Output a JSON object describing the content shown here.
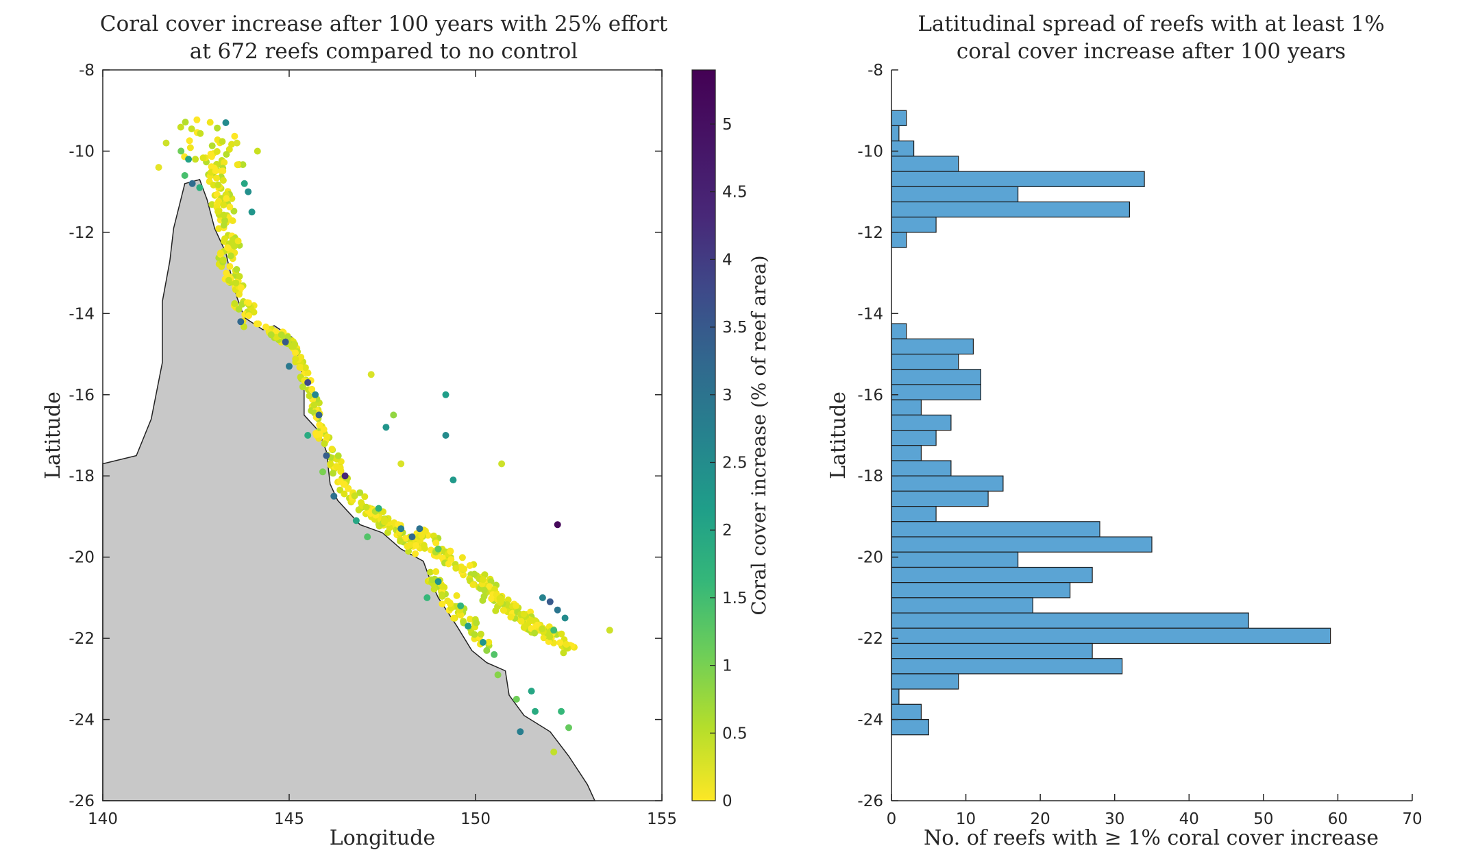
{
  "chart_data": [
    {
      "type": "scatter",
      "title_lines": [
        "Coral cover increase after 100 years with 25% effort",
        "at 672 reefs compared to no control"
      ],
      "xlabel": "Longitude",
      "ylabel": "Latitude",
      "xlim": [
        140,
        155
      ],
      "ylim": [
        -26,
        -8
      ],
      "xticks": [
        "140",
        "145",
        "150",
        "155"
      ],
      "yticks": [
        "-8",
        "-10",
        "-12",
        "-14",
        "-16",
        "-18",
        "-20",
        "-22",
        "-24",
        "-26"
      ],
      "land_color": "#c8c8c8",
      "coastline": [
        [
          140,
          -17.7
        ],
        [
          140.9,
          -17.5
        ],
        [
          141.3,
          -16.6
        ],
        [
          141.6,
          -15.2
        ],
        [
          141.6,
          -13.7
        ],
        [
          141.8,
          -12.7
        ],
        [
          141.9,
          -11.9
        ],
        [
          142.2,
          -10.8
        ],
        [
          142.6,
          -10.7
        ],
        [
          142.8,
          -11.2
        ],
        [
          143.0,
          -11.9
        ],
        [
          143.3,
          -12.5
        ],
        [
          143.4,
          -12.9
        ],
        [
          143.6,
          -13.6
        ],
        [
          143.8,
          -14.1
        ],
        [
          144.3,
          -14.4
        ],
        [
          144.6,
          -14.3
        ],
        [
          145.1,
          -14.6
        ],
        [
          145.3,
          -15.2
        ],
        [
          145.4,
          -15.9
        ],
        [
          145.4,
          -16.5
        ],
        [
          145.8,
          -16.9
        ],
        [
          146.0,
          -17.4
        ],
        [
          146.1,
          -18.2
        ],
        [
          146.3,
          -18.6
        ],
        [
          146.9,
          -19.2
        ],
        [
          147.5,
          -19.4
        ],
        [
          148.0,
          -19.8
        ],
        [
          148.6,
          -20.1
        ],
        [
          148.8,
          -20.6
        ],
        [
          149.0,
          -21.0
        ],
        [
          149.5,
          -21.7
        ],
        [
          149.9,
          -22.3
        ],
        [
          150.3,
          -22.6
        ],
        [
          150.8,
          -22.8
        ],
        [
          150.9,
          -23.4
        ],
        [
          151.3,
          -23.9
        ],
        [
          152.0,
          -24.3
        ],
        [
          152.5,
          -24.9
        ],
        [
          153.0,
          -25.6
        ],
        [
          153.2,
          -26
        ]
      ],
      "colorbar": {
        "label": "Coral cover increase (% of reef area)",
        "range": [
          0,
          5.4
        ],
        "ticks": [
          "0",
          "0.5",
          "1",
          "1.5",
          "2",
          "2.5",
          "3",
          "3.5",
          "4",
          "4.5",
          "5"
        ],
        "colormap": "viridis"
      },
      "points": [
        [
          142.2,
          -10.6,
          1.6
        ],
        [
          142.4,
          -10.8,
          3.5
        ],
        [
          142.6,
          -10.9,
          2.0
        ],
        [
          142.3,
          -10.2,
          2.3
        ],
        [
          142.1,
          -10.0,
          1.2
        ],
        [
          143.9,
          -11.0,
          2.7
        ],
        [
          144.0,
          -11.5,
          2.6
        ],
        [
          143.8,
          -10.8,
          2.2
        ],
        [
          143.6,
          -9.8,
          0.3
        ],
        [
          143.3,
          -9.3,
          2.8
        ],
        [
          141.7,
          -9.8,
          0.4
        ],
        [
          141.5,
          -10.4,
          0.2
        ],
        [
          143.7,
          -14.2,
          3.6
        ],
        [
          144.9,
          -14.7,
          3.9
        ],
        [
          145.0,
          -15.3,
          3.2
        ],
        [
          145.5,
          -15.7,
          4.2
        ],
        [
          145.8,
          -16.5,
          3.7
        ],
        [
          145.5,
          -17.0,
          2.1
        ],
        [
          146.0,
          -17.5,
          3.8
        ],
        [
          146.5,
          -18.0,
          4.8
        ],
        [
          147.4,
          -18.8,
          2.0
        ],
        [
          148.0,
          -19.3,
          3.1
        ],
        [
          148.3,
          -19.5,
          3.6
        ],
        [
          148.5,
          -19.3,
          3.4
        ],
        [
          149.0,
          -19.8,
          1.4
        ],
        [
          147.6,
          -16.8,
          2.6
        ],
        [
          147.8,
          -16.5,
          0.9
        ],
        [
          149.2,
          -16.0,
          2.4
        ],
        [
          149.2,
          -17.0,
          2.8
        ],
        [
          149.4,
          -18.1,
          2.5
        ],
        [
          148.0,
          -17.7,
          0.3
        ],
        [
          150.7,
          -17.7,
          0.4
        ],
        [
          147.2,
          -15.5,
          0.3
        ],
        [
          152.2,
          -19.2,
          5.3
        ],
        [
          153.6,
          -21.8,
          0.4
        ],
        [
          152.0,
          -21.1,
          3.9
        ],
        [
          152.2,
          -21.3,
          3.3
        ],
        [
          152.4,
          -21.5,
          2.8
        ],
        [
          152.1,
          -21.8,
          1.7
        ],
        [
          151.8,
          -21.0,
          3.0
        ],
        [
          149.6,
          -21.2,
          1.9
        ],
        [
          149.8,
          -21.7,
          2.4
        ],
        [
          150.2,
          -22.1,
          2.6
        ],
        [
          150.5,
          -22.4,
          1.5
        ],
        [
          150.6,
          -22.9,
          1.0
        ],
        [
          151.1,
          -23.5,
          1.2
        ],
        [
          151.5,
          -23.3,
          2.2
        ],
        [
          151.6,
          -23.8,
          2.1
        ],
        [
          152.3,
          -23.8,
          1.8
        ],
        [
          152.5,
          -24.2,
          1.3
        ],
        [
          151.2,
          -24.3,
          3.1
        ],
        [
          152.1,
          -24.8,
          0.5
        ],
        [
          150.3,
          -22.3,
          0.9
        ],
        [
          149.0,
          -20.6,
          2.6
        ],
        [
          148.7,
          -21.0,
          1.8
        ],
        [
          147.1,
          -19.5,
          1.5
        ],
        [
          146.8,
          -19.1,
          2.2
        ],
        [
          146.2,
          -18.5,
          3.4
        ],
        [
          145.9,
          -17.9,
          1.1
        ],
        [
          145.7,
          -16.0,
          2.9
        ]
      ],
      "mainland_cluster_colors": [
        "#fde725",
        "#f2e51d",
        "#dfe318",
        "#c8e020",
        "#b5de2b"
      ]
    },
    {
      "type": "bar",
      "orientation": "horizontal",
      "title_lines": [
        "Latitudinal spread of reefs with at least 1%",
        "coral cover increase after 100 years"
      ],
      "xlabel": "No. of reefs with ≥ 1% coral cover increase",
      "ylabel": "Latitude",
      "xlim": [
        0,
        70
      ],
      "ylim": [
        -26,
        -8
      ],
      "xticks": [
        "0",
        "10",
        "20",
        "30",
        "40",
        "50",
        "60",
        "70"
      ],
      "yticks": [
        "-8",
        "-10",
        "-12",
        "-14",
        "-16",
        "-18",
        "-20",
        "-22",
        "-24",
        "-26"
      ],
      "bar_color": "#5ba4d4",
      "bin_width": 0.375,
      "bin_top": -9.0,
      "values": [
        2,
        1,
        3,
        9,
        34,
        17,
        32,
        6,
        2,
        0,
        0,
        0,
        0,
        0,
        2,
        11,
        9,
        12,
        12,
        4,
        8,
        6,
        4,
        8,
        15,
        13,
        6,
        28,
        35,
        17,
        27,
        24,
        19,
        48,
        59,
        27,
        31,
        9,
        1,
        4,
        5
      ]
    }
  ]
}
